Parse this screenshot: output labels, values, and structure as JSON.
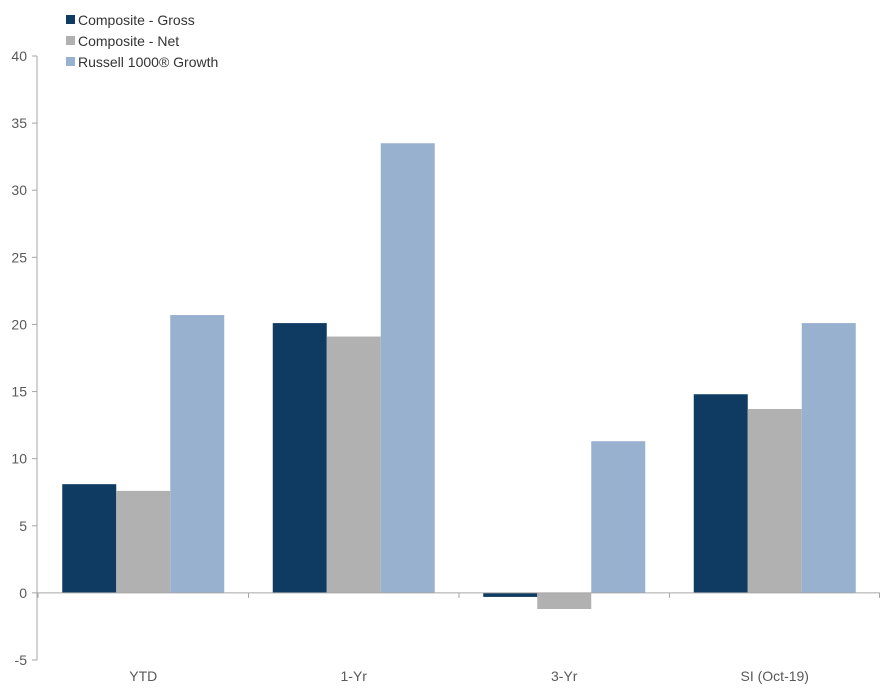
{
  "chart_data": {
    "type": "bar",
    "title": "",
    "xlabel": "",
    "ylabel": "",
    "categories": [
      "YTD",
      "1-Yr",
      "3-Yr",
      "SI (Oct-19)"
    ],
    "series": [
      {
        "name": "Composite - Gross",
        "color": "#0f3b62",
        "values": [
          8.1,
          20.1,
          -0.3,
          14.8
        ]
      },
      {
        "name": "Composite - Net",
        "color": "#b1b1b1",
        "values": [
          7.6,
          19.1,
          -1.2,
          13.7
        ]
      },
      {
        "name": "Russell 1000® Growth",
        "color": "#97b1cf",
        "values": [
          20.7,
          33.5,
          11.3,
          20.1
        ]
      }
    ],
    "ylim": [
      -5,
      40
    ],
    "yticks": [
      -5,
      0,
      5,
      10,
      15,
      20,
      25,
      30,
      35,
      40
    ],
    "grid": false,
    "legend_position": "top-left"
  }
}
